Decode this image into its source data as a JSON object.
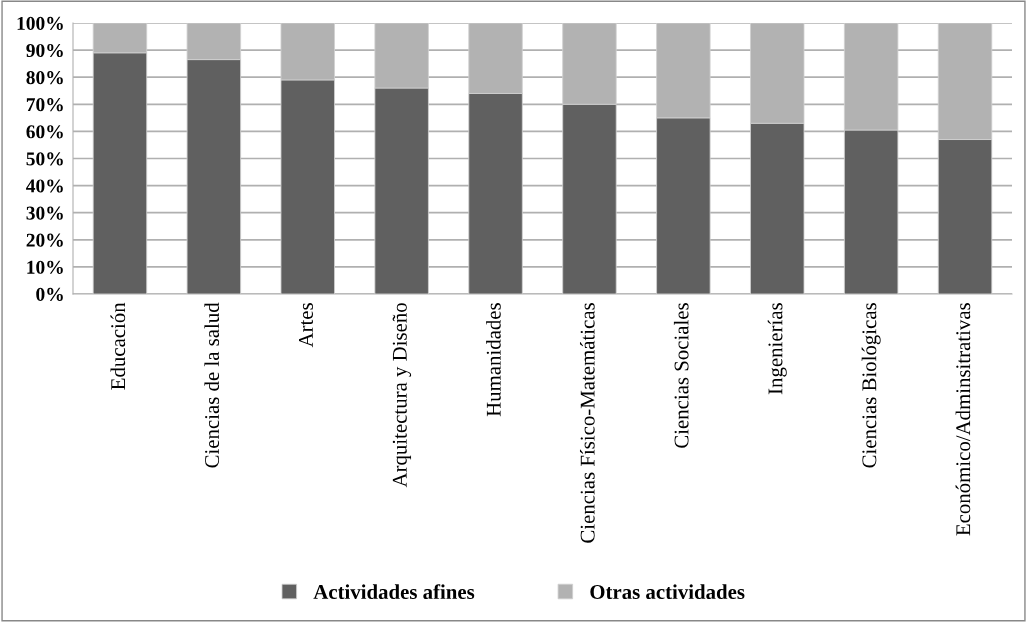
{
  "chart_data": {
    "type": "bar",
    "stacked": true,
    "categories": [
      "Educación",
      "Ciencias de la salud",
      "Artes",
      "Arquitectura y Diseño",
      "Humanidades",
      "Ciencias Físico-Matemáticas",
      "Ciencias Sociales",
      "Ingenierías",
      "Ciencias Biológicas",
      "Económico/Adminsitrativas"
    ],
    "series": [
      {
        "name": "Actividades afines",
        "color": "#606060",
        "values": [
          89,
          86.5,
          79,
          76,
          74,
          70,
          65,
          63,
          60.5,
          57
        ]
      },
      {
        "name": "Otras actividades",
        "color": "#b2b2b2",
        "values": [
          11,
          13.5,
          21,
          24,
          26,
          30,
          35,
          37,
          39.5,
          43
        ]
      }
    ],
    "ylim": [
      0,
      100
    ],
    "yticks": [
      {
        "value": 0,
        "label": "0%"
      },
      {
        "value": 10,
        "label": "10%"
      },
      {
        "value": 20,
        "label": "20%"
      },
      {
        "value": 30,
        "label": "30%"
      },
      {
        "value": 40,
        "label": "40%"
      },
      {
        "value": 50,
        "label": "50%"
      },
      {
        "value": 60,
        "label": "60%"
      },
      {
        "value": 70,
        "label": "70%"
      },
      {
        "value": 80,
        "label": "80%"
      },
      {
        "value": 90,
        "label": "90%"
      },
      {
        "value": 100,
        "label": "100%"
      }
    ],
    "grid": "y",
    "legend": "bottom"
  }
}
